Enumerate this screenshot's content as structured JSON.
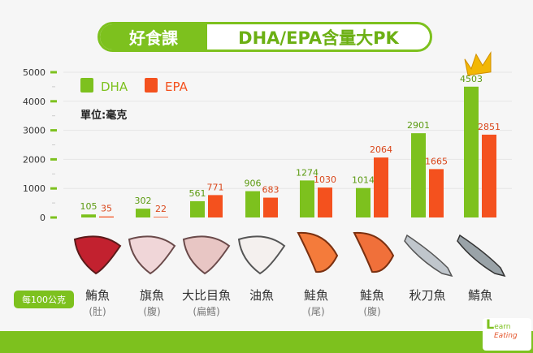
{
  "header": {
    "badge": "好食課",
    "title": "DHA/EPA含量大PK"
  },
  "unit": "單位:毫克",
  "per_label": "每100公克",
  "logo": {
    "line1": "earn",
    "line2": "Eating"
  },
  "colors": {
    "DHA": "#7dc11e",
    "EPA": "#f4511e"
  },
  "chart_data": {
    "type": "bar",
    "categories": [
      "鮪魚",
      "旗魚",
      "大比目魚",
      "油魚",
      "鮭魚",
      "鮭魚",
      "秋刀魚",
      "鯖魚"
    ],
    "subcategories": [
      "(肚)",
      "(腹)",
      "(扁鱈)",
      "",
      "(尾)",
      "(腹)",
      "",
      ""
    ],
    "series": [
      {
        "name": "DHA",
        "values": [
          105,
          302,
          561,
          906,
          1274,
          1014,
          2901,
          4503
        ]
      },
      {
        "name": "EPA",
        "values": [
          35,
          22,
          771,
          683,
          1030,
          2064,
          1665,
          2851
        ]
      }
    ],
    "yticks": [
      "0",
      "1000",
      "2000",
      "3000",
      "4000",
      "5000"
    ],
    "ylim": [
      0,
      5000
    ],
    "legend": "top-left",
    "grid": true,
    "annotation": "crown-icon on highest value"
  }
}
